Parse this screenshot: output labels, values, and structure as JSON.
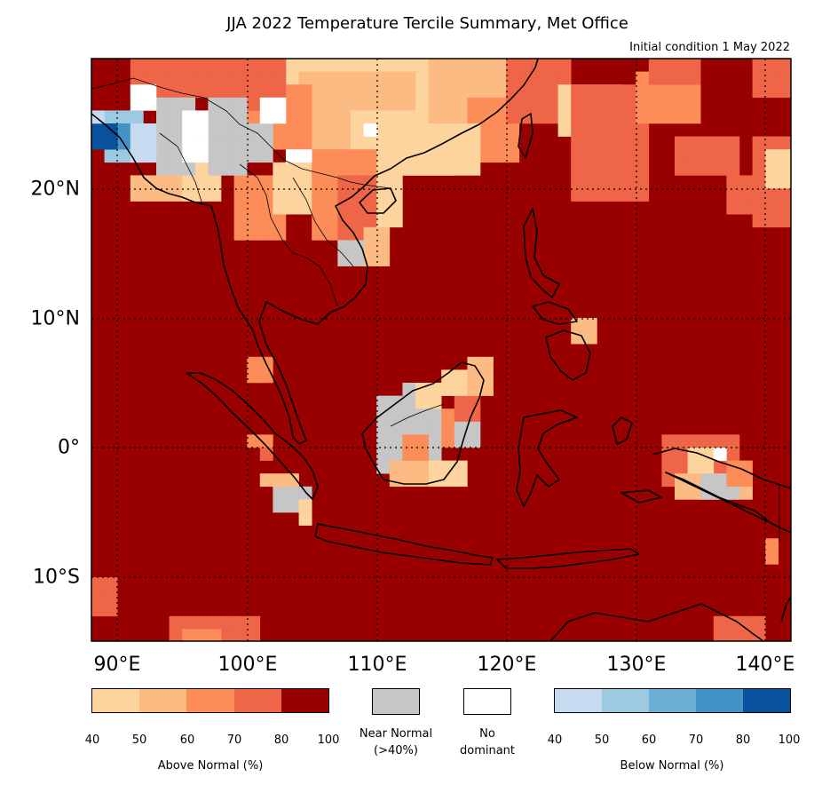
{
  "title": "JJA 2022 Temperature Tercile Summary, Met Office",
  "subtitle": "Initial condition 1 May 2022",
  "map": {
    "lon_labels": [
      "90°E",
      "100°E",
      "110°E",
      "120°E",
      "130°E",
      "140°E"
    ],
    "lat_labels": [
      "20°N",
      "10°N",
      "0°",
      "10°S"
    ],
    "extent": {
      "lon": [
        88,
        142
      ],
      "lat": [
        -15,
        30
      ]
    },
    "gridlines": "dotted"
  },
  "colors": {
    "above": [
      "#fdd49e",
      "#fdbb84",
      "#fc8d59",
      "#ef6548",
      "#990000"
    ],
    "near_normal": "#c6c6c6",
    "no_dominant": "#ffffff",
    "below": [
      "#c6dbef",
      "#9ecae1",
      "#6baed6",
      "#4292c6",
      "#08519c"
    ]
  },
  "legend": {
    "above_label": "Above Normal (%)",
    "below_label": "Below Normal (%)",
    "ticks": [
      "40",
      "50",
      "60",
      "70",
      "80",
      "100"
    ],
    "near_normal_line1": "Near Normal",
    "near_normal_line2": "(>40%)",
    "no_dominant_line1": "No",
    "no_dominant_line2": "dominant"
  }
}
